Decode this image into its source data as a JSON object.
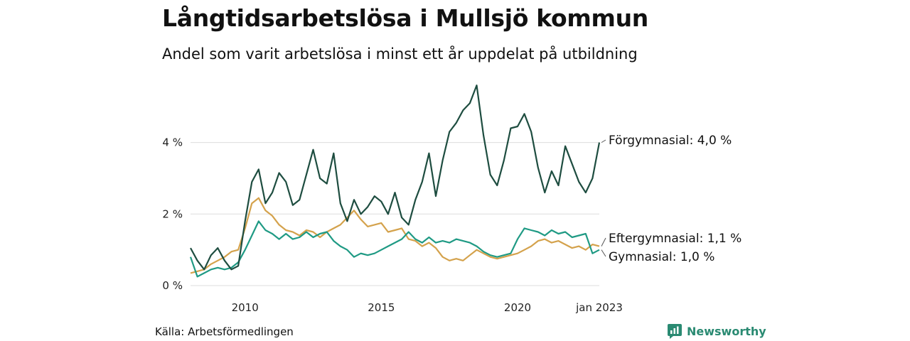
{
  "header": {
    "title": "Långtidsarbetslösa i Mullsjö kommun",
    "subtitle": "Andel som varit arbetslösa i minst ett år uppdelat på utbildning"
  },
  "footer": {
    "source": "Källa: Arbetsförmedlingen",
    "brand": "Newsworthy",
    "brand_color": "#2a8a72"
  },
  "chart_data": {
    "type": "line",
    "y_ticks": [
      {
        "value": 0,
        "label": "0 %"
      },
      {
        "value": 2,
        "label": "2 %"
      },
      {
        "value": 4,
        "label": "4 %"
      }
    ],
    "x_ticks": [
      {
        "value": 2010,
        "label": "2010"
      },
      {
        "value": 2015,
        "label": "2015"
      },
      {
        "value": 2020,
        "label": "2020"
      },
      {
        "value": 2023.0,
        "label": "jan 2023"
      }
    ],
    "xlim": [
      2008.0,
      2023.0
    ],
    "ylim": [
      0,
      5.8
    ],
    "grid": true,
    "series": [
      {
        "name": "Förgymnasial",
        "end_label": "Förgymnasial: 4,0 %",
        "color": "#1e4d40",
        "points": [
          [
            2008.0,
            1.05
          ],
          [
            2008.25,
            0.7
          ],
          [
            2008.5,
            0.45
          ],
          [
            2008.75,
            0.85
          ],
          [
            2009.0,
            1.05
          ],
          [
            2009.25,
            0.7
          ],
          [
            2009.5,
            0.45
          ],
          [
            2009.75,
            0.55
          ],
          [
            2010.0,
            1.8
          ],
          [
            2010.25,
            2.9
          ],
          [
            2010.5,
            3.25
          ],
          [
            2010.75,
            2.3
          ],
          [
            2011.0,
            2.6
          ],
          [
            2011.25,
            3.15
          ],
          [
            2011.5,
            2.9
          ],
          [
            2011.75,
            2.25
          ],
          [
            2012.0,
            2.4
          ],
          [
            2012.25,
            3.1
          ],
          [
            2012.5,
            3.8
          ],
          [
            2012.75,
            3.0
          ],
          [
            2013.0,
            2.85
          ],
          [
            2013.25,
            3.7
          ],
          [
            2013.5,
            2.3
          ],
          [
            2013.75,
            1.8
          ],
          [
            2014.0,
            2.4
          ],
          [
            2014.25,
            2.0
          ],
          [
            2014.5,
            2.2
          ],
          [
            2014.75,
            2.5
          ],
          [
            2015.0,
            2.35
          ],
          [
            2015.25,
            2.0
          ],
          [
            2015.5,
            2.6
          ],
          [
            2015.75,
            1.9
          ],
          [
            2016.0,
            1.7
          ],
          [
            2016.25,
            2.4
          ],
          [
            2016.5,
            2.9
          ],
          [
            2016.75,
            3.7
          ],
          [
            2017.0,
            2.5
          ],
          [
            2017.25,
            3.5
          ],
          [
            2017.5,
            4.3
          ],
          [
            2017.75,
            4.55
          ],
          [
            2018.0,
            4.9
          ],
          [
            2018.25,
            5.1
          ],
          [
            2018.5,
            5.6
          ],
          [
            2018.75,
            4.2
          ],
          [
            2019.0,
            3.1
          ],
          [
            2019.25,
            2.8
          ],
          [
            2019.5,
            3.5
          ],
          [
            2019.75,
            4.4
          ],
          [
            2020.0,
            4.45
          ],
          [
            2020.25,
            4.8
          ],
          [
            2020.5,
            4.3
          ],
          [
            2020.75,
            3.3
          ],
          [
            2021.0,
            2.6
          ],
          [
            2021.25,
            3.2
          ],
          [
            2021.5,
            2.8
          ],
          [
            2021.75,
            3.9
          ],
          [
            2022.0,
            3.4
          ],
          [
            2022.25,
            2.9
          ],
          [
            2022.5,
            2.6
          ],
          [
            2022.75,
            3.0
          ],
          [
            2023.0,
            4.0
          ]
        ]
      },
      {
        "name": "Eftergymnasial",
        "end_label": "Eftergymnasial: 1,1 %",
        "color": "#d4a24c",
        "points": [
          [
            2008.0,
            0.35
          ],
          [
            2008.25,
            0.4
          ],
          [
            2008.5,
            0.45
          ],
          [
            2008.75,
            0.6
          ],
          [
            2009.0,
            0.7
          ],
          [
            2009.25,
            0.8
          ],
          [
            2009.5,
            0.95
          ],
          [
            2009.75,
            1.0
          ],
          [
            2010.0,
            1.6
          ],
          [
            2010.25,
            2.3
          ],
          [
            2010.5,
            2.45
          ],
          [
            2010.75,
            2.1
          ],
          [
            2011.0,
            1.95
          ],
          [
            2011.25,
            1.7
          ],
          [
            2011.5,
            1.55
          ],
          [
            2011.75,
            1.5
          ],
          [
            2012.0,
            1.4
          ],
          [
            2012.25,
            1.55
          ],
          [
            2012.5,
            1.5
          ],
          [
            2012.75,
            1.35
          ],
          [
            2013.0,
            1.5
          ],
          [
            2013.25,
            1.6
          ],
          [
            2013.5,
            1.7
          ],
          [
            2013.75,
            1.9
          ],
          [
            2014.0,
            2.1
          ],
          [
            2014.25,
            1.85
          ],
          [
            2014.5,
            1.65
          ],
          [
            2014.75,
            1.7
          ],
          [
            2015.0,
            1.75
          ],
          [
            2015.25,
            1.5
          ],
          [
            2015.5,
            1.55
          ],
          [
            2015.75,
            1.6
          ],
          [
            2016.0,
            1.3
          ],
          [
            2016.25,
            1.25
          ],
          [
            2016.5,
            1.1
          ],
          [
            2016.75,
            1.2
          ],
          [
            2017.0,
            1.05
          ],
          [
            2017.25,
            0.8
          ],
          [
            2017.5,
            0.7
          ],
          [
            2017.75,
            0.75
          ],
          [
            2018.0,
            0.7
          ],
          [
            2018.25,
            0.85
          ],
          [
            2018.5,
            1.0
          ],
          [
            2018.75,
            0.9
          ],
          [
            2019.0,
            0.8
          ],
          [
            2019.25,
            0.75
          ],
          [
            2019.5,
            0.8
          ],
          [
            2019.75,
            0.85
          ],
          [
            2020.0,
            0.9
          ],
          [
            2020.25,
            1.0
          ],
          [
            2020.5,
            1.1
          ],
          [
            2020.75,
            1.25
          ],
          [
            2021.0,
            1.3
          ],
          [
            2021.25,
            1.2
          ],
          [
            2021.5,
            1.25
          ],
          [
            2021.75,
            1.15
          ],
          [
            2022.0,
            1.05
          ],
          [
            2022.25,
            1.1
          ],
          [
            2022.5,
            1.0
          ],
          [
            2022.75,
            1.15
          ],
          [
            2023.0,
            1.1
          ]
        ]
      },
      {
        "name": "Gymnasial",
        "end_label": "Gymnasial: 1,0 %",
        "color": "#1f9a84",
        "points": [
          [
            2008.0,
            0.8
          ],
          [
            2008.25,
            0.25
          ],
          [
            2008.5,
            0.35
          ],
          [
            2008.75,
            0.45
          ],
          [
            2009.0,
            0.5
          ],
          [
            2009.25,
            0.45
          ],
          [
            2009.5,
            0.5
          ],
          [
            2009.75,
            0.65
          ],
          [
            2010.0,
            1.0
          ],
          [
            2010.25,
            1.4
          ],
          [
            2010.5,
            1.8
          ],
          [
            2010.75,
            1.55
          ],
          [
            2011.0,
            1.45
          ],
          [
            2011.25,
            1.3
          ],
          [
            2011.5,
            1.45
          ],
          [
            2011.75,
            1.3
          ],
          [
            2012.0,
            1.35
          ],
          [
            2012.25,
            1.5
          ],
          [
            2012.5,
            1.35
          ],
          [
            2012.75,
            1.45
          ],
          [
            2013.0,
            1.5
          ],
          [
            2013.25,
            1.25
          ],
          [
            2013.5,
            1.1
          ],
          [
            2013.75,
            1.0
          ],
          [
            2014.0,
            0.8
          ],
          [
            2014.25,
            0.9
          ],
          [
            2014.5,
            0.85
          ],
          [
            2014.75,
            0.9
          ],
          [
            2015.0,
            1.0
          ],
          [
            2015.25,
            1.1
          ],
          [
            2015.5,
            1.2
          ],
          [
            2015.75,
            1.3
          ],
          [
            2016.0,
            1.5
          ],
          [
            2016.25,
            1.3
          ],
          [
            2016.5,
            1.2
          ],
          [
            2016.75,
            1.35
          ],
          [
            2017.0,
            1.2
          ],
          [
            2017.25,
            1.25
          ],
          [
            2017.5,
            1.2
          ],
          [
            2017.75,
            1.3
          ],
          [
            2018.0,
            1.25
          ],
          [
            2018.25,
            1.2
          ],
          [
            2018.5,
            1.1
          ],
          [
            2018.75,
            0.95
          ],
          [
            2019.0,
            0.85
          ],
          [
            2019.25,
            0.8
          ],
          [
            2019.5,
            0.85
          ],
          [
            2019.75,
            0.9
          ],
          [
            2020.0,
            1.3
          ],
          [
            2020.25,
            1.6
          ],
          [
            2020.5,
            1.55
          ],
          [
            2020.75,
            1.5
          ],
          [
            2021.0,
            1.4
          ],
          [
            2021.25,
            1.55
          ],
          [
            2021.5,
            1.45
          ],
          [
            2021.75,
            1.5
          ],
          [
            2022.0,
            1.35
          ],
          [
            2022.25,
            1.4
          ],
          [
            2022.5,
            1.45
          ],
          [
            2022.75,
            0.9
          ],
          [
            2023.0,
            1.0
          ]
        ]
      }
    ]
  }
}
